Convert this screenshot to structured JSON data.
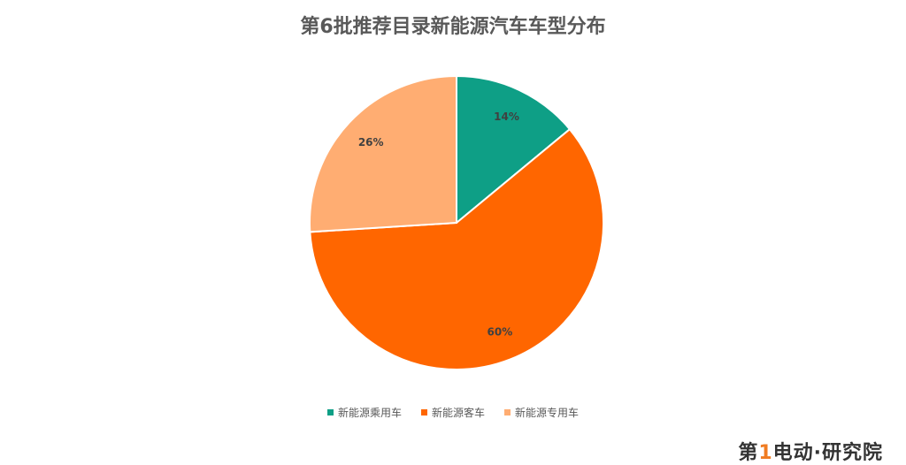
{
  "chart_data": {
    "type": "pie",
    "title": "第6批推荐目录新能源汽车车型分布",
    "categories": [
      "新能源乘用车",
      "新能源客车",
      "新能源专用车"
    ],
    "values": [
      14,
      60,
      26
    ],
    "labels": [
      "14%",
      "60%",
      "26%"
    ],
    "colors": [
      "#0e9f86",
      "#ff6600",
      "#ffad72"
    ],
    "start_angle": "top, clockwise",
    "legend_position": "bottom"
  },
  "watermark": {
    "text": "第1电动·研究院"
  }
}
